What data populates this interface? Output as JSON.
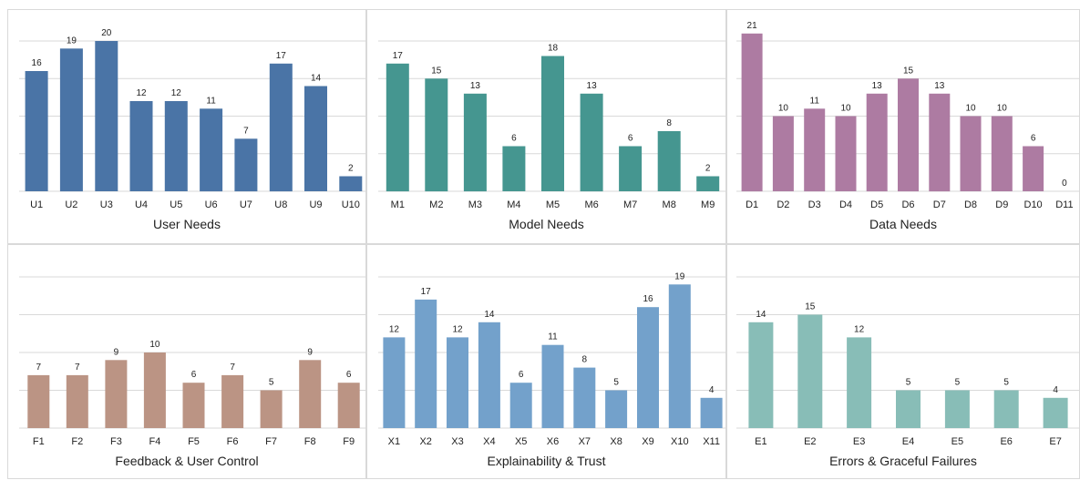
{
  "colors": {
    "user": "#4a74a6",
    "model": "#459690",
    "data": "#ad7ba2",
    "feedback": "#bb9484",
    "explainability": "#73a1cb",
    "errors": "#88bdb7",
    "gridline": "#d9d9d9",
    "label": "#222222"
  },
  "chart_data": [
    {
      "type": "bar",
      "title": "User Needs",
      "categories": [
        "U1",
        "U2",
        "U3",
        "U4",
        "U5",
        "U6",
        "U7",
        "U8",
        "U9",
        "U10"
      ],
      "values": [
        16,
        19,
        20,
        12,
        12,
        11,
        7,
        17,
        14,
        2
      ],
      "ylim": [
        0,
        20
      ],
      "grid": true,
      "color_key": "user"
    },
    {
      "type": "bar",
      "title": "Model Needs",
      "categories": [
        "M1",
        "M2",
        "M3",
        "M4",
        "M5",
        "M6",
        "M7",
        "M8",
        "M9"
      ],
      "values": [
        17,
        15,
        13,
        6,
        18,
        13,
        6,
        8,
        2
      ],
      "ylim": [
        0,
        20
      ],
      "grid": true,
      "color_key": "model"
    },
    {
      "type": "bar",
      "title": "Data Needs",
      "categories": [
        "D1",
        "D2",
        "D3",
        "D4",
        "D5",
        "D6",
        "D7",
        "D8",
        "D9",
        "D10",
        "D11"
      ],
      "values": [
        21,
        10,
        11,
        10,
        13,
        15,
        13,
        10,
        10,
        6,
        0
      ],
      "ylim": [
        0,
        20
      ],
      "grid": true,
      "color_key": "data"
    },
    {
      "type": "bar",
      "title": "Feedback & User Control",
      "categories": [
        "F1",
        "F2",
        "F3",
        "F4",
        "F5",
        "F6",
        "F7",
        "F8",
        "F9"
      ],
      "values": [
        7,
        7,
        9,
        10,
        6,
        7,
        5,
        9,
        6
      ],
      "ylim": [
        0,
        20
      ],
      "grid": true,
      "color_key": "feedback"
    },
    {
      "type": "bar",
      "title": "Explainability & Trust",
      "categories": [
        "X1",
        "X2",
        "X3",
        "X4",
        "X5",
        "X6",
        "X7",
        "X8",
        "X9",
        "X10",
        "X11"
      ],
      "values": [
        12,
        17,
        12,
        14,
        6,
        11,
        8,
        5,
        16,
        19,
        4
      ],
      "ylim": [
        0,
        20
      ],
      "grid": true,
      "color_key": "explainability"
    },
    {
      "type": "bar",
      "title": "Errors & Graceful Failures",
      "categories": [
        "E1",
        "E2",
        "E3",
        "E4",
        "E5",
        "E6",
        "E7"
      ],
      "values": [
        14,
        15,
        12,
        5,
        5,
        5,
        4
      ],
      "ylim": [
        0,
        20
      ],
      "grid": true,
      "color_key": "errors"
    }
  ]
}
